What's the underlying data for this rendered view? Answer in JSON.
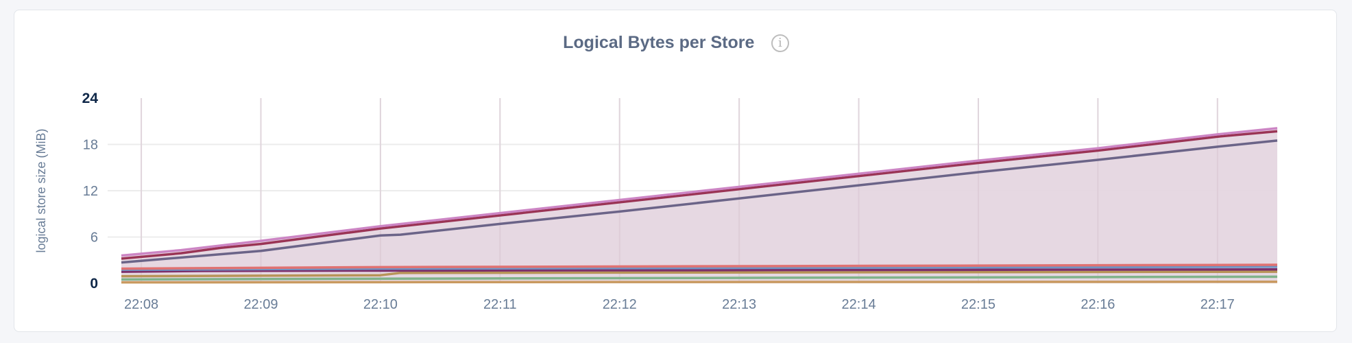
{
  "chart_data": {
    "type": "area",
    "title": "Logical Bytes per Store",
    "ylabel": "logical store size (MiB)",
    "xlabel": "",
    "ylim": [
      0,
      24
    ],
    "yticks": [
      "0",
      "6",
      "12",
      "18",
      "24"
    ],
    "xticks": [
      "22:08",
      "22:09",
      "22:10",
      "22:11",
      "22:12",
      "22:13",
      "22:14",
      "22:15",
      "22:16",
      "22:17"
    ],
    "xrange": [
      "22:07:50",
      "22:17:30"
    ],
    "grid": true,
    "fill_color": "#e4d5df",
    "series": [
      {
        "color": "#cc85c4",
        "x": [
          "22:07:50",
          "22:08:20",
          "22:08:40",
          "22:09:00",
          "22:10:00",
          "22:11:00",
          "22:12:00",
          "22:13:00",
          "22:14:00",
          "22:15:00",
          "22:16:00",
          "22:17:00",
          "22:17:30"
        ],
        "values": [
          3.6,
          4.3,
          4.9,
          5.5,
          7.4,
          9.1,
          10.8,
          12.5,
          14.2,
          15.9,
          17.5,
          19.3,
          20.1
        ]
      },
      {
        "color": "#9a3455",
        "x": [
          "22:07:50",
          "22:08:20",
          "22:08:40",
          "22:09:00",
          "22:10:00",
          "22:11:00",
          "22:12:00",
          "22:13:00",
          "22:14:00",
          "22:15:00",
          "22:16:00",
          "22:17:00",
          "22:17:30"
        ],
        "values": [
          3.2,
          3.9,
          4.6,
          5.1,
          7.1,
          8.8,
          10.5,
          12.2,
          13.9,
          15.6,
          17.2,
          19.0,
          19.7
        ]
      },
      {
        "color": "#6b6488",
        "x": [
          "22:07:50",
          "22:09:00",
          "22:10:00",
          "22:10:10",
          "22:11:00",
          "22:12:00",
          "22:13:00",
          "22:14:00",
          "22:15:00",
          "22:16:00",
          "22:17:00",
          "22:17:30"
        ],
        "values": [
          2.7,
          4.2,
          6.2,
          6.3,
          7.7,
          9.3,
          11.0,
          12.7,
          14.4,
          16.0,
          17.7,
          18.5
        ]
      },
      {
        "color": "#e07272",
        "x": [
          "22:07:50",
          "22:10:00",
          "22:17:30"
        ],
        "values": [
          1.9,
          2.1,
          2.4
        ]
      },
      {
        "color": "#6f93c4",
        "x": [
          "22:07:50",
          "22:10:00",
          "22:17:30"
        ],
        "values": [
          1.75,
          1.9,
          2.15
        ]
      },
      {
        "color": "#7c2f6a",
        "x": [
          "22:07:50",
          "22:08:30",
          "22:10:00",
          "22:17:30"
        ],
        "values": [
          1.5,
          1.6,
          1.65,
          1.8
        ]
      },
      {
        "color": "#b89458",
        "x": [
          "22:07:50",
          "22:10:00",
          "22:10:10",
          "22:17:30"
        ],
        "values": [
          0.92,
          1.05,
          1.35,
          1.5
        ]
      },
      {
        "color": "#80b38b",
        "x": [
          "22:07:50",
          "22:10:00",
          "22:17:30"
        ],
        "values": [
          0.5,
          0.6,
          0.86
        ]
      },
      {
        "color": "#c99a60",
        "x": [
          "22:07:50",
          "22:10:00",
          "22:17:30"
        ],
        "values": [
          0.12,
          0.15,
          0.2
        ]
      }
    ]
  }
}
